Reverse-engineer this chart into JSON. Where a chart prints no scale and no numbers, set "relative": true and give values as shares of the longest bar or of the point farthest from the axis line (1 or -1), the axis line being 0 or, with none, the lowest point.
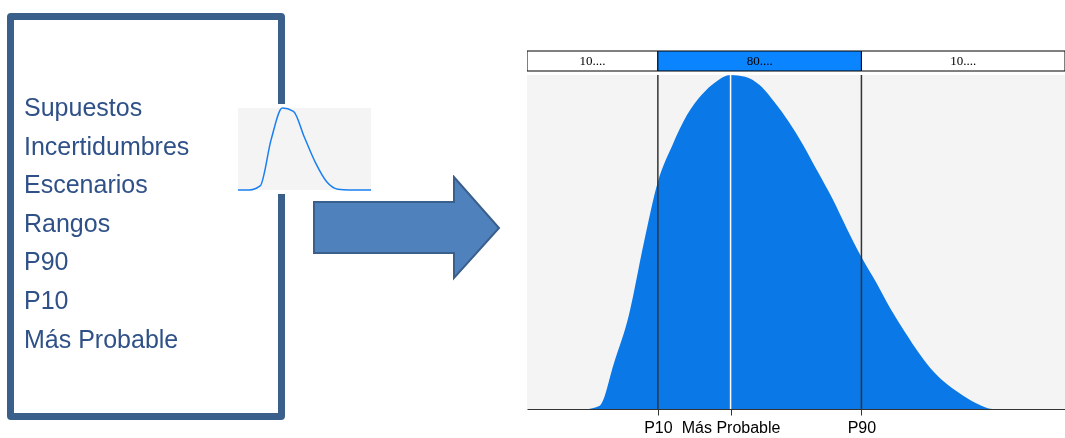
{
  "chart_data": [
    {
      "type": "other",
      "annotations": [
        "Supuestos",
        "Incertidumbres",
        "Escenarios",
        "Rangos",
        "P90",
        "P10",
        "Más Probable"
      ]
    },
    {
      "type": "line",
      "relative": true,
      "color": "#1a7ff0",
      "categories": [
        null,
        null,
        null,
        null,
        null,
        null,
        null,
        null,
        null,
        null,
        null,
        null,
        null
      ],
      "values": [
        0,
        0,
        0.05,
        0.62,
        1.0,
        0.96,
        0.64,
        0.33,
        0.1,
        0.01,
        0,
        0,
        0
      ]
    },
    {
      "type": "area",
      "relative": true,
      "color": "#0a78e6",
      "categories": [
        null,
        null,
        null,
        null,
        null,
        null,
        null,
        null,
        null,
        "P10",
        null,
        null,
        null,
        null,
        "Más Probable",
        null,
        null,
        null,
        null,
        null,
        null,
        null,
        null,
        "P90",
        null,
        null,
        null,
        null,
        null,
        null,
        null,
        null,
        null,
        null,
        null,
        null,
        null,
        null
      ],
      "values": [
        0,
        0,
        0,
        0,
        0,
        0.01,
        0.14,
        0.28,
        0.49,
        0.68,
        0.79,
        0.88,
        0.94,
        0.98,
        1.0,
        0.995,
        0.97,
        0.92,
        0.86,
        0.79,
        0.71,
        0.63,
        0.54,
        0.455,
        0.38,
        0.3,
        0.23,
        0.165,
        0.11,
        0.07,
        0.04,
        0.015,
        0,
        0,
        0,
        0,
        0,
        0
      ],
      "ref_lines": [
        {
          "axis": "x",
          "value": "P10",
          "color": "#333333"
        },
        {
          "axis": "x",
          "value": "Más Probable",
          "color": "#ffffff"
        },
        {
          "axis": "x",
          "value": "P90",
          "color": "#333333"
        }
      ],
      "annotations": [
        "10....",
        "80....",
        "10...."
      ]
    }
  ]
}
